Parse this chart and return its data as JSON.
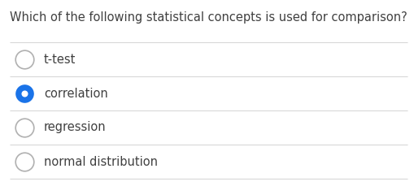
{
  "question": "Which of the following statistical concepts is used for comparison?",
  "options": [
    "t-test",
    "correlation",
    "regression",
    "normal distribution"
  ],
  "selected_index": 1,
  "background_color": "#ffffff",
  "text_color": "#404040",
  "question_fontsize": 10.5,
  "option_fontsize": 10.5,
  "radio_unselected_edge": "#b0b0b0",
  "radio_selected_fill": "#1a73e8",
  "radio_selected_edge": "#1a73e8",
  "line_color": "#d8d8d8",
  "fig_width": 5.09,
  "fig_height": 2.29,
  "dpi": 100
}
